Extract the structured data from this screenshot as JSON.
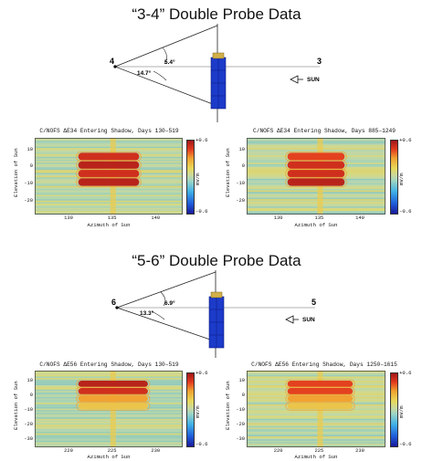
{
  "sections": [
    {
      "title": "“3-4” Double Probe Data",
      "diagram": {
        "probe_left": "4",
        "probe_right": "3",
        "angle_small": "5.4°",
        "angle_large": "14.7°",
        "sun_label": "SUN"
      },
      "panels": [
        {
          "title": "C/NOFS ΔE34 Entering Shadow, Days 130–519",
          "ylabel": "Elevation of Sun",
          "xlabel": "Azimuth of Sun",
          "xticks": [
            "130",
            "135",
            "140"
          ],
          "yticks": [
            "10",
            "0",
            "-10",
            "-20"
          ],
          "cbar_max": "+0.6",
          "cbar_min": "-0.6",
          "cbar_unit": "mV/m"
        },
        {
          "title": "C/NOFS ΔE34 Entering Shadow, Days 885–1249",
          "ylabel": "Elevation of Sun",
          "xlabel": "Azimuth of Sun",
          "xticks": [
            "130",
            "135",
            "140"
          ],
          "yticks": [
            "10",
            "0",
            "-10",
            "-20"
          ],
          "cbar_max": "+0.6",
          "cbar_min": "-0.6",
          "cbar_unit": "mV/m"
        }
      ]
    },
    {
      "title": "“5-6” Double Probe Data",
      "diagram": {
        "probe_left": "6",
        "probe_right": "5",
        "angle_small": "6.9°",
        "angle_large": "13.3°",
        "sun_label": "SUN"
      },
      "panels": [
        {
          "title": "C/NOFS ΔE56 Entering Shadow, Days 130–519",
          "ylabel": "Elevation of Sun",
          "xlabel": "Azimuth of Sun",
          "xticks": [
            "220",
            "225",
            "230"
          ],
          "yticks": [
            "10",
            "0",
            "-10",
            "-20",
            "-30"
          ],
          "cbar_max": "+0.6",
          "cbar_min": "-0.6",
          "cbar_unit": "mV/m"
        },
        {
          "title": "C/NOFS ΔE56 Entering Shadow, Days 1250–1615",
          "ylabel": "Elevation of Sun",
          "xlabel": "Azimuth of Sun",
          "xticks": [
            "220",
            "225",
            "230"
          ],
          "yticks": [
            "10",
            "0",
            "-10",
            "-20",
            "-30"
          ],
          "cbar_max": "+0.6",
          "cbar_min": "-0.6",
          "cbar_unit": "mV/m"
        }
      ]
    }
  ],
  "chart_data": [
    {
      "type": "heatmap",
      "title": "C/NOFS ΔE34 Entering Shadow, Days 130–519",
      "xlabel": "Azimuth of Sun",
      "ylabel": "Elevation of Sun",
      "xlim": [
        126,
        143
      ],
      "ylim": [
        -28,
        17
      ],
      "colorbar": {
        "min": -0.6,
        "max": 0.6,
        "unit": "mV/m"
      },
      "bands": [
        {
          "elevation": 6,
          "value": 0.5
        },
        {
          "elevation": 1,
          "value": 0.55
        },
        {
          "elevation": -4,
          "value": 0.5
        },
        {
          "elevation": -9,
          "value": 0.55
        }
      ],
      "shadow_azimuth_range": [
        131,
        138
      ],
      "vertical_stripe_azimuth": 135
    },
    {
      "type": "heatmap",
      "title": "C/NOFS ΔE34 Entering Shadow, Days 885–1249",
      "xlabel": "Azimuth of Sun",
      "ylabel": "Elevation of Sun",
      "xlim": [
        126,
        143
      ],
      "ylim": [
        -28,
        17
      ],
      "colorbar": {
        "min": -0.6,
        "max": 0.6,
        "unit": "mV/m"
      },
      "bands": [
        {
          "elevation": 6,
          "value": 0.45
        },
        {
          "elevation": 1,
          "value": 0.5
        },
        {
          "elevation": -4,
          "value": 0.5
        },
        {
          "elevation": -9,
          "value": 0.55
        }
      ],
      "shadow_azimuth_range": [
        131,
        138
      ],
      "vertical_stripe_azimuth": 135
    },
    {
      "type": "heatmap",
      "title": "C/NOFS ΔE56 Entering Shadow, Days 130–519",
      "xlabel": "Azimuth of Sun",
      "ylabel": "Elevation of Sun",
      "xlim": [
        216,
        233
      ],
      "ylim": [
        -35,
        17
      ],
      "colorbar": {
        "min": -0.6,
        "max": 0.6,
        "unit": "mV/m"
      },
      "bands": [
        {
          "elevation": 8,
          "value": 0.55
        },
        {
          "elevation": 3,
          "value": 0.5
        },
        {
          "elevation": -2,
          "value": 0.3
        },
        {
          "elevation": -7,
          "value": 0.2
        }
      ],
      "shadow_azimuth_range": [
        221,
        229
      ],
      "vertical_stripe_azimuth": 225
    },
    {
      "type": "heatmap",
      "title": "C/NOFS ΔE56 Entering Shadow, Days 1250–1615",
      "xlabel": "Azimuth of Sun",
      "ylabel": "Elevation of Sun",
      "xlim": [
        216,
        233
      ],
      "ylim": [
        -35,
        17
      ],
      "colorbar": {
        "min": -0.6,
        "max": 0.6,
        "unit": "mV/m"
      },
      "bands": [
        {
          "elevation": 8,
          "value": 0.45
        },
        {
          "elevation": 3,
          "value": 0.45
        },
        {
          "elevation": -2,
          "value": 0.3
        },
        {
          "elevation": -7,
          "value": 0.2
        }
      ],
      "shadow_azimuth_range": [
        221,
        229
      ],
      "vertical_stripe_azimuth": 225
    }
  ]
}
